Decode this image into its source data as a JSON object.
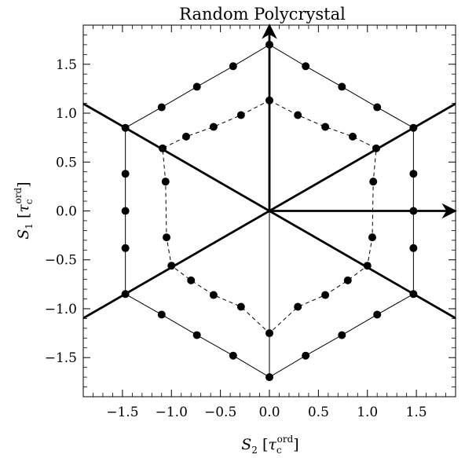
{
  "chart_data": {
    "type": "scatter",
    "title": "Random Polycrystal",
    "xlabel": {
      "symbol": "S",
      "sub": "2",
      "open": " [",
      "tau": "τ",
      "tau_sub": "c",
      "tau_sup": "ord",
      "close": "]"
    },
    "ylabel": {
      "symbol": "S",
      "sub": "1",
      "open": " [",
      "tau": "τ",
      "tau_sub": "c",
      "tau_sup": "ord",
      "close": "]"
    },
    "xlim": [
      -1.9,
      1.9
    ],
    "ylim": [
      -1.9,
      1.9
    ],
    "x_ticks": [
      {
        "v": -1.5,
        "label": "−1.5"
      },
      {
        "v": -1.0,
        "label": "−1.0"
      },
      {
        "v": -0.5,
        "label": "−0.5"
      },
      {
        "v": 0.0,
        "label": "0.0"
      },
      {
        "v": 0.5,
        "label": "0.5"
      },
      {
        "v": 1.0,
        "label": "1.0"
      },
      {
        "v": 1.5,
        "label": "1.5"
      }
    ],
    "y_ticks": [
      {
        "v": -1.5,
        "label": "−1.5"
      },
      {
        "v": -1.0,
        "label": "−1.0"
      },
      {
        "v": -0.5,
        "label": "−0.5"
      },
      {
        "v": 0.0,
        "label": "0.0"
      },
      {
        "v": 0.5,
        "label": "0.5"
      },
      {
        "v": 1.0,
        "label": "1.0"
      },
      {
        "v": 1.5,
        "label": "1.5"
      }
    ],
    "grid": false,
    "lines": [
      {
        "name": "thick line +30°",
        "style": "thick",
        "points": [
          [
            -1.9,
            -1.097
          ],
          [
            1.9,
            1.097
          ]
        ]
      },
      {
        "name": "thick line -30°",
        "style": "thick",
        "points": [
          [
            -1.9,
            1.097
          ],
          [
            1.9,
            -1.097
          ]
        ]
      },
      {
        "name": "thin vertical axis",
        "style": "thin",
        "points": [
          [
            0,
            -1.7
          ],
          [
            0,
            0
          ]
        ]
      }
    ],
    "arrows": [
      {
        "name": "vertical arrow",
        "from": [
          0,
          0
        ],
        "to": [
          0,
          1.9
        ]
      },
      {
        "name": "horizontal arrow",
        "from": [
          0,
          0
        ],
        "to": [
          1.9,
          0
        ]
      }
    ],
    "series": [
      {
        "style": "solid-hexagon",
        "closed": true,
        "points": [
          [
            0,
            1.7
          ],
          [
            0.37,
            1.48
          ],
          [
            0.74,
            1.27
          ],
          [
            1.1,
            1.06
          ],
          [
            1.47,
            0.85
          ],
          [
            1.47,
            0.38
          ],
          [
            1.47,
            0
          ],
          [
            1.47,
            -0.38
          ],
          [
            1.47,
            -0.85
          ],
          [
            1.1,
            -1.06
          ],
          [
            0.74,
            -1.27
          ],
          [
            0.37,
            -1.48
          ],
          [
            0,
            -1.7
          ],
          [
            -0.37,
            -1.48
          ],
          [
            -0.74,
            -1.27
          ],
          [
            -1.1,
            -1.06
          ],
          [
            -1.47,
            -0.85
          ],
          [
            -1.47,
            -0.38
          ],
          [
            -1.47,
            0
          ],
          [
            -1.47,
            0.38
          ],
          [
            -1.47,
            0.85
          ],
          [
            -1.1,
            1.06
          ],
          [
            -0.74,
            1.27
          ],
          [
            -0.37,
            1.48
          ]
        ]
      },
      {
        "style": "dashed-polygon",
        "closed": true,
        "points": [
          [
            0,
            1.13
          ],
          [
            0.29,
            0.98
          ],
          [
            0.57,
            0.86
          ],
          [
            0.85,
            0.76
          ],
          [
            1.09,
            0.64
          ],
          [
            1.06,
            0.3
          ],
          [
            1.05,
            -0.27
          ],
          [
            1.0,
            -0.56
          ],
          [
            0.8,
            -0.71
          ],
          [
            0.57,
            -0.86
          ],
          [
            0.29,
            -0.98
          ],
          [
            0,
            -1.25
          ],
          [
            -0.29,
            -0.98
          ],
          [
            -0.57,
            -0.86
          ],
          [
            -0.8,
            -0.71
          ],
          [
            -1.0,
            -0.56
          ],
          [
            -1.05,
            -0.27
          ],
          [
            -1.06,
            0.3
          ],
          [
            -1.09,
            0.64
          ],
          [
            -0.85,
            0.76
          ],
          [
            -0.57,
            0.86
          ],
          [
            -0.29,
            0.98
          ]
        ],
        "marker_indices": [
          0,
          2,
          3,
          4,
          5,
          6,
          7,
          8,
          9,
          10,
          11,
          12,
          13,
          14,
          15,
          16,
          17,
          18,
          19,
          20,
          21,
          1
        ]
      }
    ],
    "extra_points": [
      [
        0,
        0
      ]
    ]
  }
}
